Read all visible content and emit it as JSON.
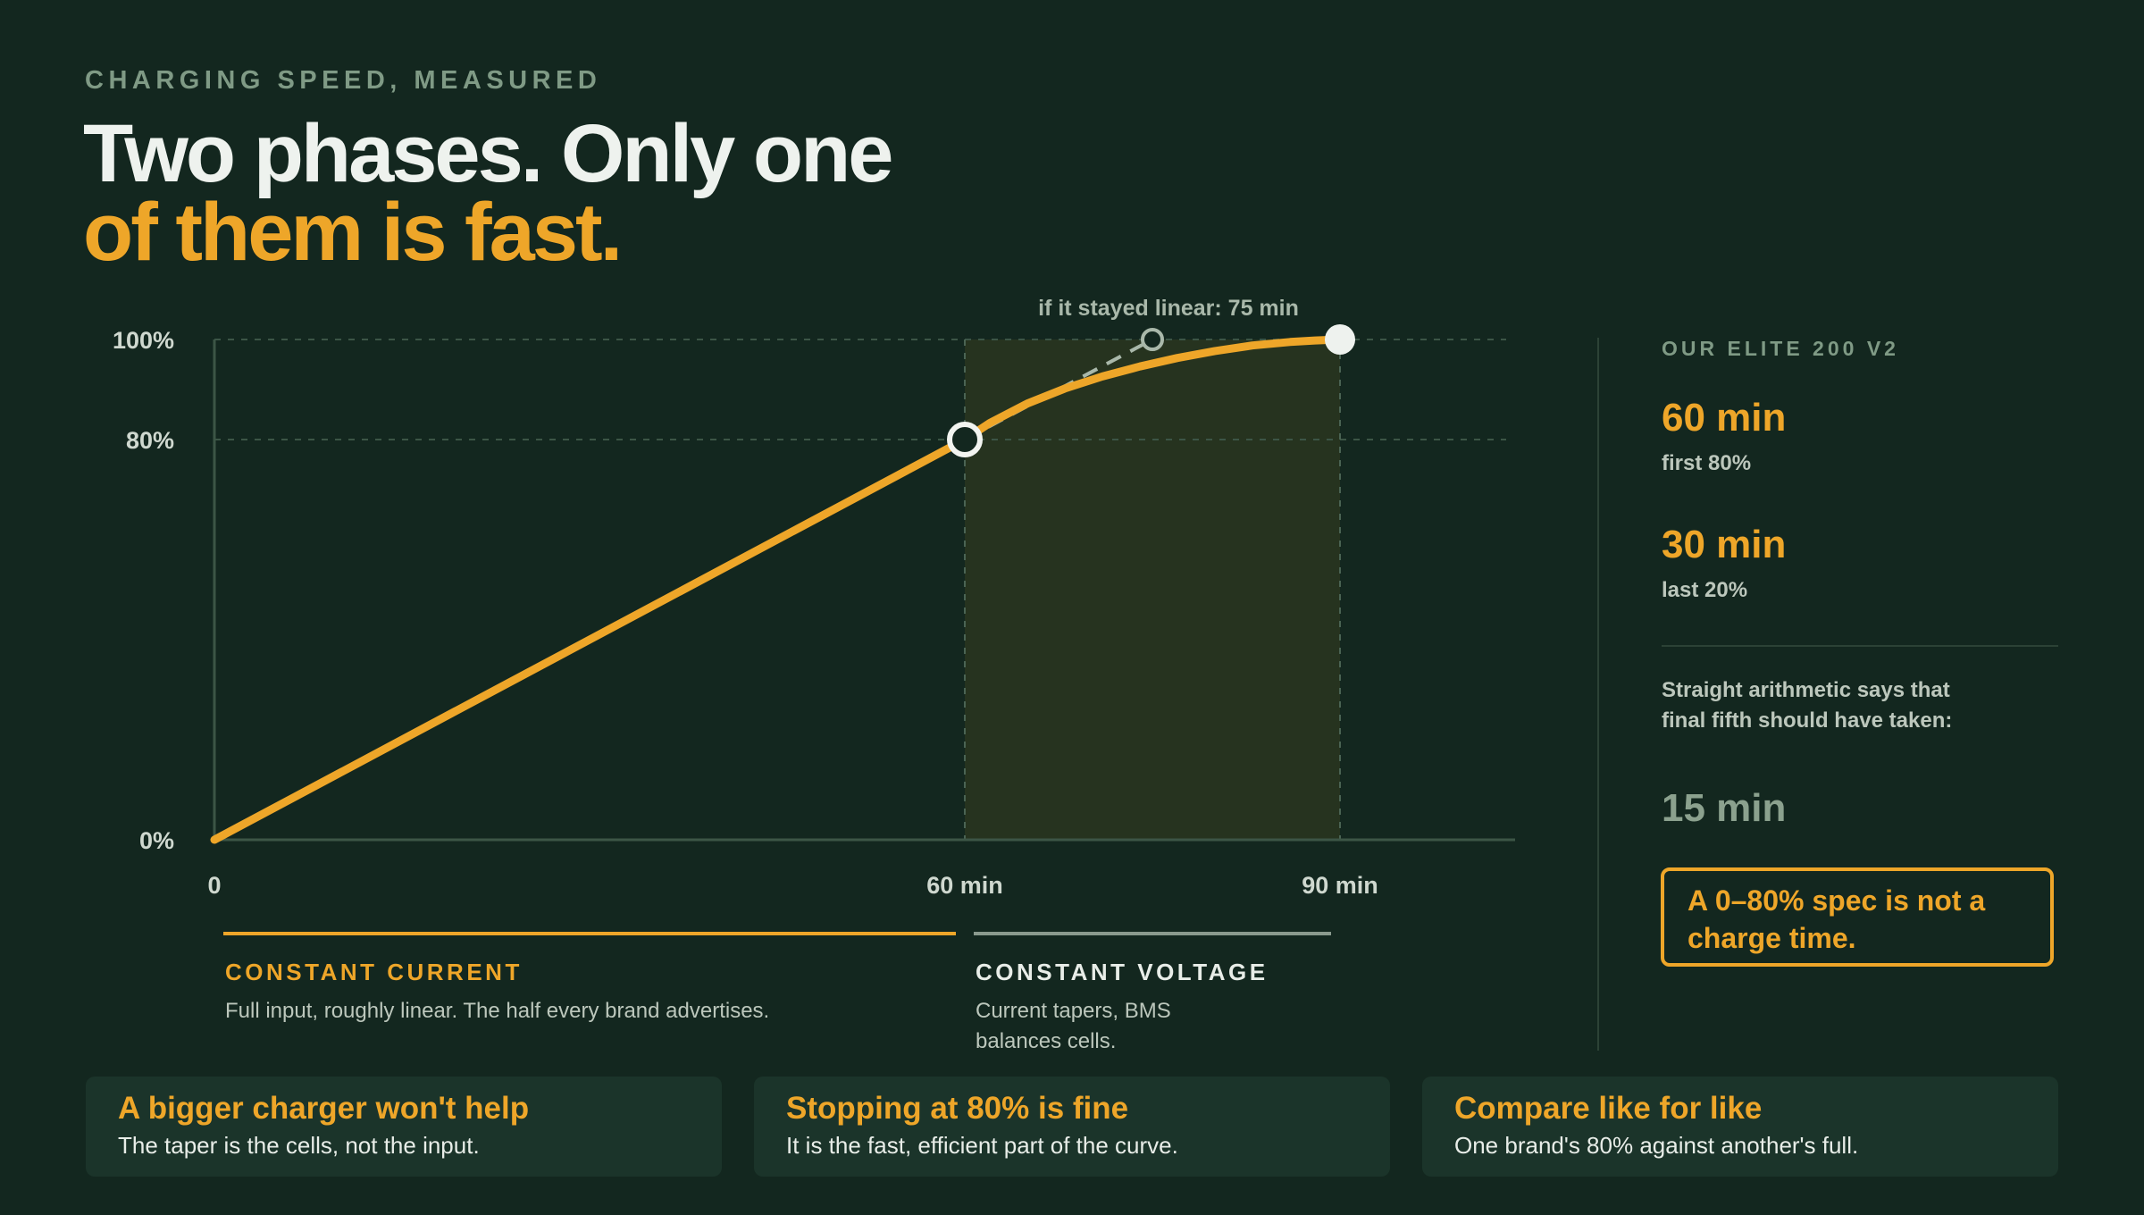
{
  "eyebrow": "CHARGING SPEED, MEASURED",
  "headline": {
    "line1": "Two phases. Only one",
    "line2": "of them is fast."
  },
  "chart_data": {
    "type": "line",
    "x_ticks": [
      {
        "value": 0,
        "label": "0"
      },
      {
        "value": 60,
        "label": "60 min"
      },
      {
        "value": 90,
        "label": "90 min"
      }
    ],
    "y_ticks": [
      {
        "value": 0,
        "label": "0%"
      },
      {
        "value": 80,
        "label": "80%"
      },
      {
        "value": 100,
        "label": "100%"
      }
    ],
    "xlim": [
      0,
      104
    ],
    "ylim": [
      0,
      100
    ],
    "series": [
      {
        "x": [
          0,
          60,
          62,
          65,
          68,
          71,
          74,
          77,
          80,
          83,
          86,
          88,
          90
        ],
        "y": [
          0,
          80,
          83.3,
          87.2,
          90.2,
          92.6,
          94.6,
          96.3,
          97.7,
          98.8,
          99.5,
          99.8,
          100
        ],
        "color": "#eea629"
      }
    ],
    "linear_projection": {
      "x": [
        60,
        75
      ],
      "y": [
        80,
        100
      ],
      "color": "#a9b8aa"
    },
    "annotations": [
      {
        "text": "if it stayed linear: 75 min",
        "x": 75,
        "y": 100
      }
    ],
    "shaded_region": {
      "x": [
        60,
        90
      ],
      "color": "#26331f"
    },
    "markers": [
      {
        "x": 60,
        "y": 80,
        "style": "hollow"
      },
      {
        "x": 90,
        "y": 100,
        "style": "filled"
      },
      {
        "x": 75,
        "y": 100,
        "style": "hollow-small"
      }
    ],
    "grid": "dashed at 80% and 100%"
  },
  "phases": [
    {
      "title": "CONSTANT CURRENT",
      "desc": "Full input, roughly linear. The half every brand advertises.",
      "color": "#eea629"
    },
    {
      "title": "CONSTANT VOLTAGE",
      "desc": "Current tapers, BMS balances cells.",
      "color": "#8a9a8e"
    }
  ],
  "side": {
    "eyebrow": "OUR ELITE 200 V2",
    "stat1_value": "60 min",
    "stat1_label": "first 80%",
    "stat2_value": "30 min",
    "stat2_label": "last 20%",
    "para": "Straight arithmetic says that final fifth should have taken:",
    "dim_value": "15 min",
    "callout": "A 0–80% spec is not a charge time."
  },
  "cards": [
    {
      "title": "A bigger charger won't help",
      "text": "The taper is the cells, not the input."
    },
    {
      "title": "Stopping at 80% is fine",
      "text": "It is the fast, efficient part of the curve."
    },
    {
      "title": "Compare like for like",
      "text": "One brand's 80% against another's full."
    }
  ],
  "colors": {
    "background": "#13271f",
    "accent": "#eea629",
    "muted": "#7f9a85",
    "card": "#1b342a"
  }
}
